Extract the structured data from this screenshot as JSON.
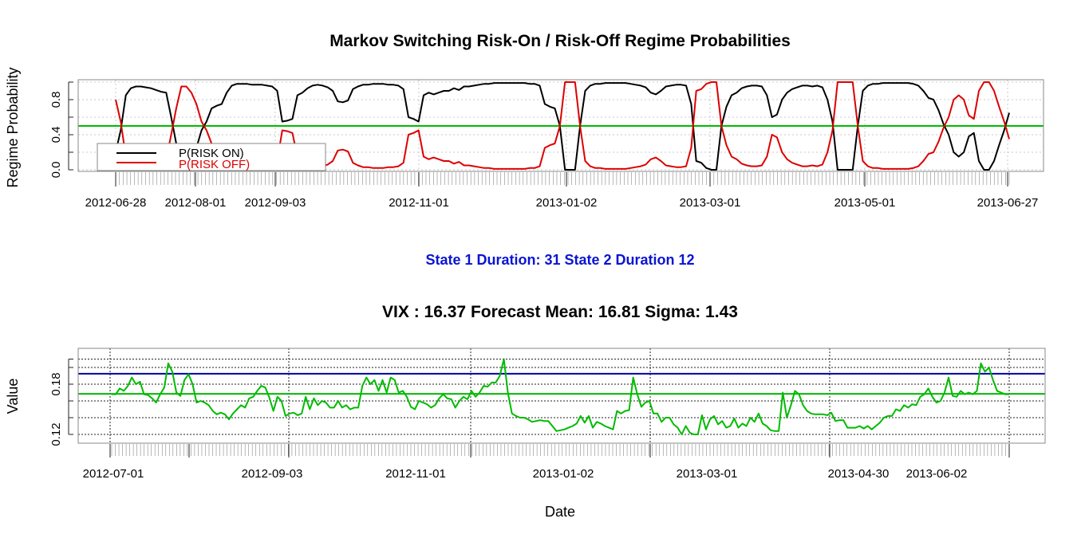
{
  "chart_data": [
    {
      "type": "line",
      "title": "Markov Switching Risk-On / Risk-Off Regime Probabilities",
      "xlabel": "",
      "ylabel": "Regime Probability",
      "ylim": [
        0,
        1
      ],
      "yticks": [
        "0.0",
        "0.4",
        "0.8"
      ],
      "yticks_values": [
        0.0,
        0.4,
        0.8
      ],
      "x_labels": [
        "2012-06-28",
        "2012-08-01",
        "2012-09-03",
        "2012-11-01",
        "2013-01-02",
        "2013-03-01",
        "2013-05-01",
        "2013-06-27"
      ],
      "grid": true,
      "legend_placement": "bottom-left",
      "threshold": 0.5,
      "threshold_color": "#00bb00",
      "series": [
        {
          "name": "P(RISK ON)",
          "color": "#000000",
          "values": [
            0.2,
            0.45,
            0.85,
            0.93,
            0.95,
            0.95,
            0.94,
            0.93,
            0.91,
            0.89,
            0.88,
            0.6,
            0.3,
            0.05,
            0.05,
            0.12,
            0.25,
            0.45,
            0.55,
            0.7,
            0.73,
            0.75,
            0.88,
            0.96,
            0.98,
            0.98,
            0.98,
            0.97,
            0.97,
            0.97,
            0.96,
            0.95,
            0.9,
            0.55,
            0.56,
            0.58,
            0.85,
            0.88,
            0.93,
            0.96,
            0.97,
            0.96,
            0.94,
            0.9,
            0.78,
            0.77,
            0.79,
            0.92,
            0.95,
            0.97,
            0.97,
            0.98,
            0.98,
            0.98,
            0.97,
            0.97,
            0.96,
            0.92,
            0.6,
            0.58,
            0.55,
            0.85,
            0.88,
            0.86,
            0.88,
            0.9,
            0.9,
            0.93,
            0.91,
            0.95,
            0.95,
            0.96,
            0.97,
            0.98,
            0.98,
            0.99,
            0.99,
            0.99,
            0.99,
            0.99,
            0.99,
            0.99,
            0.98,
            0.98,
            0.96,
            0.75,
            0.72,
            0.7,
            0.5,
            0.0,
            0.0,
            0.0,
            0.5,
            0.9,
            0.96,
            0.98,
            0.98,
            0.99,
            0.99,
            0.99,
            0.99,
            0.99,
            0.98,
            0.97,
            0.96,
            0.94,
            0.88,
            0.86,
            0.9,
            0.95,
            0.96,
            0.97,
            0.97,
            0.96,
            0.75,
            0.1,
            0.08,
            0.02,
            0.0,
            0.0,
            0.5,
            0.72,
            0.85,
            0.88,
            0.93,
            0.95,
            0.96,
            0.96,
            0.95,
            0.85,
            0.6,
            0.63,
            0.8,
            0.88,
            0.92,
            0.94,
            0.96,
            0.96,
            0.95,
            0.96,
            0.94,
            0.8,
            0.55,
            0.0,
            0.0,
            0.0,
            0.0,
            0.5,
            0.9,
            0.96,
            0.98,
            0.98,
            0.99,
            0.99,
            0.99,
            0.99,
            0.99,
            0.99,
            0.98,
            0.96,
            0.9,
            0.82,
            0.8,
            0.68,
            0.52,
            0.4,
            0.2,
            0.15,
            0.2,
            0.38,
            0.42,
            0.1,
            0.0,
            0.0,
            0.1,
            0.28,
            0.45,
            0.65
          ]
        },
        {
          "name": "P(RISK OFF)",
          "color": "#dd0000",
          "values": [
            0.8,
            0.55,
            0.15,
            0.07,
            0.05,
            0.05,
            0.06,
            0.07,
            0.09,
            0.11,
            0.12,
            0.4,
            0.7,
            0.95,
            0.95,
            0.88,
            0.75,
            0.55,
            0.45,
            0.3,
            0.27,
            0.25,
            0.12,
            0.04,
            0.02,
            0.02,
            0.02,
            0.03,
            0.03,
            0.03,
            0.04,
            0.05,
            0.1,
            0.45,
            0.44,
            0.42,
            0.15,
            0.12,
            0.07,
            0.04,
            0.03,
            0.04,
            0.06,
            0.1,
            0.22,
            0.23,
            0.21,
            0.08,
            0.05,
            0.03,
            0.03,
            0.02,
            0.02,
            0.02,
            0.03,
            0.03,
            0.04,
            0.08,
            0.4,
            0.42,
            0.45,
            0.15,
            0.12,
            0.14,
            0.12,
            0.1,
            0.1,
            0.07,
            0.09,
            0.05,
            0.05,
            0.04,
            0.03,
            0.02,
            0.02,
            0.01,
            0.01,
            0.01,
            0.01,
            0.01,
            0.01,
            0.01,
            0.02,
            0.02,
            0.04,
            0.25,
            0.28,
            0.3,
            0.5,
            1.0,
            1.0,
            1.0,
            0.5,
            0.1,
            0.04,
            0.02,
            0.02,
            0.01,
            0.01,
            0.01,
            0.01,
            0.01,
            0.02,
            0.03,
            0.04,
            0.06,
            0.12,
            0.14,
            0.1,
            0.05,
            0.04,
            0.03,
            0.03,
            0.04,
            0.25,
            0.9,
            0.92,
            0.98,
            1.0,
            1.0,
            0.5,
            0.28,
            0.15,
            0.12,
            0.07,
            0.05,
            0.04,
            0.04,
            0.05,
            0.15,
            0.4,
            0.37,
            0.2,
            0.12,
            0.08,
            0.06,
            0.04,
            0.04,
            0.05,
            0.04,
            0.06,
            0.2,
            0.45,
            1.0,
            1.0,
            1.0,
            1.0,
            0.5,
            0.1,
            0.04,
            0.02,
            0.02,
            0.01,
            0.01,
            0.01,
            0.01,
            0.01,
            0.01,
            0.02,
            0.04,
            0.1,
            0.18,
            0.2,
            0.32,
            0.48,
            0.6,
            0.8,
            0.85,
            0.8,
            0.62,
            0.58,
            0.9,
            1.0,
            1.0,
            0.9,
            0.72,
            0.55,
            0.35
          ]
        }
      ]
    },
    {
      "type": "line",
      "title": "VIX :  16.37 Forecast Mean: 16.81  Sigma: 1.43",
      "subtitle": "State 1 Duration: 31    State 2 Duration 12",
      "xlabel": "Date",
      "ylabel": "Value",
      "ylim": [
        0.11,
        0.214
      ],
      "yticks": [
        "0.12",
        "0.18"
      ],
      "yticks_values": [
        0.12,
        0.18
      ],
      "x_labels": [
        "2012-07-01",
        "2012-09-03",
        "2012-11-01",
        "2013-01-02",
        "2013-03-01",
        "2013-04-30",
        "2013-06-02"
      ],
      "grid": true,
      "hlines": [
        {
          "value": 0.1925,
          "color": "#0000aa"
        },
        {
          "value": 0.1685,
          "color": "#00bb00"
        }
      ],
      "series": [
        {
          "name": "",
          "color": "#00bb00",
          "values": [
            0.168,
            0.168,
            0.175,
            0.172,
            0.178,
            0.188,
            0.18,
            0.183,
            0.168,
            0.167,
            0.163,
            0.158,
            0.168,
            0.176,
            0.205,
            0.195,
            0.17,
            0.166,
            0.185,
            0.192,
            0.18,
            0.158,
            0.16,
            0.158,
            0.155,
            0.148,
            0.144,
            0.146,
            0.144,
            0.138,
            0.145,
            0.15,
            0.155,
            0.152,
            0.163,
            0.165,
            0.172,
            0.178,
            0.176,
            0.164,
            0.148,
            0.165,
            0.16,
            0.142,
            0.145,
            0.146,
            0.143,
            0.145,
            0.165,
            0.15,
            0.163,
            0.155,
            0.16,
            0.158,
            0.152,
            0.152,
            0.16,
            0.152,
            0.155,
            0.15,
            0.152,
            0.152,
            0.178,
            0.188,
            0.18,
            0.185,
            0.172,
            0.185,
            0.17,
            0.188,
            0.185,
            0.17,
            0.172,
            0.165,
            0.153,
            0.15,
            0.16,
            0.158,
            0.156,
            0.152,
            0.155,
            0.163,
            0.168,
            0.163,
            0.162,
            0.152,
            0.16,
            0.165,
            0.162,
            0.172,
            0.165,
            0.17,
            0.178,
            0.177,
            0.182,
            0.182,
            0.19,
            0.21,
            0.17,
            0.145,
            0.142,
            0.14,
            0.14,
            0.138,
            0.135,
            0.136,
            0.137,
            0.136,
            0.136,
            0.13,
            0.124,
            0.125,
            0.126,
            0.128,
            0.13,
            0.133,
            0.142,
            0.134,
            0.142,
            0.128,
            0.135,
            0.133,
            0.13,
            0.128,
            0.126,
            0.148,
            0.145,
            0.148,
            0.149,
            0.188,
            0.168,
            0.153,
            0.158,
            0.16,
            0.145,
            0.145,
            0.135,
            0.14,
            0.14,
            0.132,
            0.128,
            0.12,
            0.13,
            0.122,
            0.12,
            0.12,
            0.143,
            0.126,
            0.138,
            0.142,
            0.132,
            0.136,
            0.128,
            0.13,
            0.139,
            0.128,
            0.133,
            0.13,
            0.14,
            0.135,
            0.145,
            0.133,
            0.13,
            0.125,
            0.124,
            0.124,
            0.17,
            0.14,
            0.155,
            0.172,
            0.168,
            0.155,
            0.148,
            0.145,
            0.144,
            0.144,
            0.144,
            0.143,
            0.146,
            0.136,
            0.137,
            0.137,
            0.128,
            0.128,
            0.128,
            0.13,
            0.127,
            0.13,
            0.126,
            0.13,
            0.134,
            0.14,
            0.142,
            0.142,
            0.15,
            0.148,
            0.155,
            0.152,
            0.156,
            0.155,
            0.165,
            0.168,
            0.175,
            0.165,
            0.158,
            0.16,
            0.17,
            0.188,
            0.166,
            0.165,
            0.172,
            0.168,
            0.17,
            0.168,
            0.172,
            0.205,
            0.195,
            0.2,
            0.185,
            0.172,
            0.17,
            0.168,
            0.168
          ]
        }
      ]
    }
  ]
}
